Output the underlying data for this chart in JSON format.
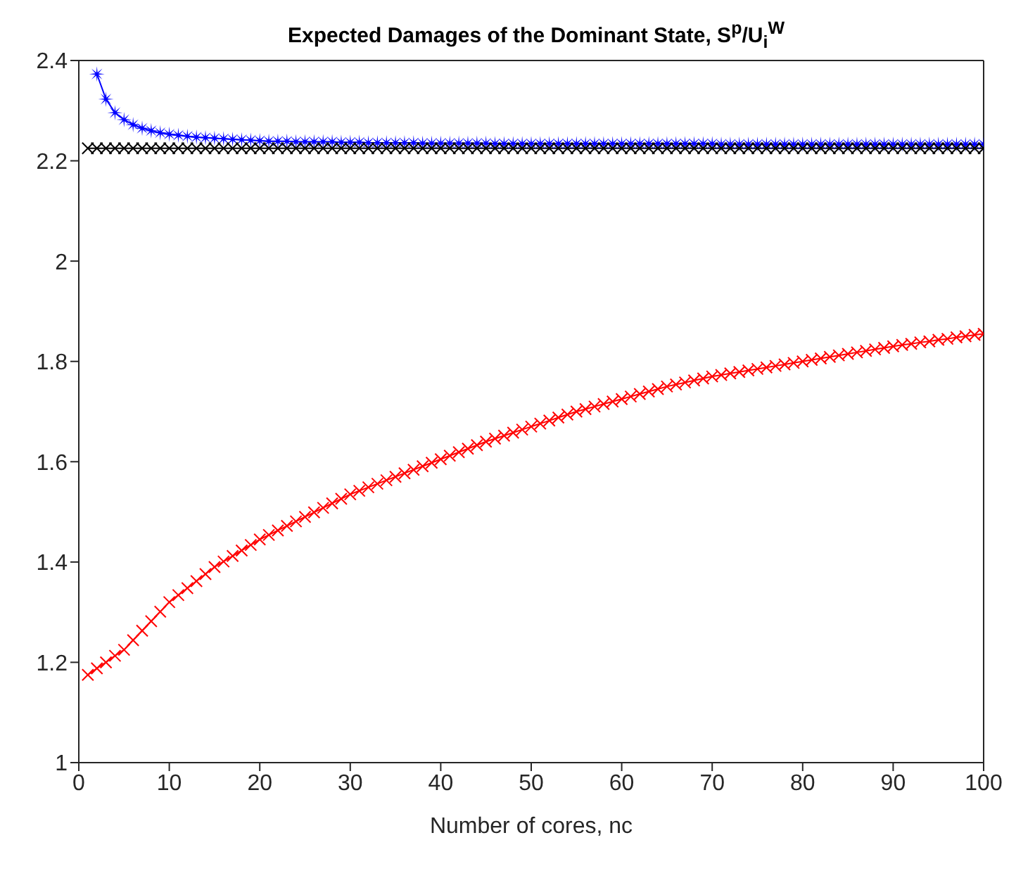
{
  "chart_data": {
    "type": "line",
    "title": "Expected Damages of the Dominant State, S$^{p}$/U$_{i}$$^{W}$",
    "xlabel": "Number of cores, nc",
    "x": [
      1,
      2,
      3,
      4,
      5,
      6,
      7,
      8,
      9,
      10,
      11,
      12,
      13,
      14,
      15,
      16,
      17,
      18,
      19,
      20,
      21,
      22,
      23,
      24,
      25,
      26,
      27,
      28,
      29,
      30,
      31,
      32,
      33,
      34,
      35,
      36,
      37,
      38,
      39,
      40,
      41,
      42,
      43,
      44,
      45,
      46,
      47,
      48,
      49,
      50,
      51,
      52,
      53,
      54,
      55,
      56,
      57,
      58,
      59,
      60,
      61,
      62,
      63,
      64,
      65,
      66,
      67,
      68,
      69,
      70,
      71,
      72,
      73,
      74,
      75,
      76,
      77,
      78,
      79,
      80,
      81,
      82,
      83,
      84,
      85,
      86,
      87,
      88,
      89,
      90,
      91,
      92,
      93,
      94,
      95,
      96,
      97,
      98,
      99,
      100
    ],
    "series": [
      {
        "color": "#0000ff",
        "marker": "star",
        "values": [
          null,
          2.373,
          2.323,
          2.296,
          2.282,
          2.272,
          2.265,
          2.26,
          2.256,
          2.253,
          2.251,
          2.249,
          2.247,
          2.246,
          2.245,
          2.244,
          2.243,
          2.242,
          2.241,
          2.24,
          2.239,
          2.239,
          2.239,
          2.238,
          2.238,
          2.238,
          2.238,
          2.238,
          2.237,
          2.237,
          2.237,
          2.236,
          2.236,
          2.236,
          2.236,
          2.236,
          2.236,
          2.235,
          2.235,
          2.235,
          2.235,
          2.235,
          2.235,
          2.235,
          2.235,
          2.234,
          2.234,
          2.234,
          2.234,
          2.234,
          2.234,
          2.234,
          2.234,
          2.234,
          2.234,
          2.234,
          2.234,
          2.234,
          2.234,
          2.234,
          2.234,
          2.234,
          2.234,
          2.234,
          2.234,
          2.234,
          2.234,
          2.234,
          2.234,
          2.234,
          2.233,
          2.233,
          2.233,
          2.233,
          2.233,
          2.233,
          2.233,
          2.233,
          2.233,
          2.233,
          2.233,
          2.233,
          2.233,
          2.233,
          2.233,
          2.233,
          2.233,
          2.233,
          2.233,
          2.233,
          2.233,
          2.233,
          2.233,
          2.233,
          2.233,
          2.233,
          2.233,
          2.233,
          2.233,
          2.233
        ]
      },
      {
        "color": "#000000",
        "marker": "cross",
        "values": [
          2.225,
          2.225,
          2.225,
          2.225,
          2.225,
          2.225,
          2.225,
          2.225,
          2.225,
          2.225,
          2.225,
          2.225,
          2.225,
          2.225,
          2.225,
          2.225,
          2.225,
          2.225,
          2.225,
          2.225,
          2.225,
          2.225,
          2.225,
          2.225,
          2.225,
          2.225,
          2.225,
          2.225,
          2.225,
          2.225,
          2.225,
          2.225,
          2.225,
          2.225,
          2.225,
          2.225,
          2.225,
          2.225,
          2.225,
          2.225,
          2.225,
          2.225,
          2.225,
          2.225,
          2.225,
          2.225,
          2.225,
          2.225,
          2.225,
          2.225,
          2.225,
          2.225,
          2.225,
          2.225,
          2.225,
          2.225,
          2.225,
          2.225,
          2.225,
          2.225,
          2.225,
          2.225,
          2.225,
          2.225,
          2.225,
          2.225,
          2.225,
          2.225,
          2.225,
          2.225,
          2.225,
          2.225,
          2.225,
          2.225,
          2.225,
          2.225,
          2.225,
          2.225,
          2.225,
          2.225,
          2.225,
          2.225,
          2.225,
          2.225,
          2.225,
          2.225,
          2.225,
          2.225,
          2.225,
          2.225,
          2.225,
          2.225,
          2.225,
          2.225,
          2.225,
          2.225,
          2.225,
          2.225,
          2.225,
          2.225
        ]
      },
      {
        "color": "#ff0000",
        "marker": "cross",
        "values": [
          1.175,
          1.188,
          1.2,
          1.213,
          1.225,
          1.244,
          1.263,
          1.282,
          1.301,
          1.32,
          1.334,
          1.348,
          1.362,
          1.376,
          1.39,
          1.401,
          1.412,
          1.423,
          1.434,
          1.445,
          1.454,
          1.463,
          1.472,
          1.481,
          1.49,
          1.499,
          1.508,
          1.517,
          1.526,
          1.535,
          1.542,
          1.549,
          1.556,
          1.563,
          1.57,
          1.577,
          1.584,
          1.591,
          1.598,
          1.605,
          1.612,
          1.619,
          1.626,
          1.633,
          1.64,
          1.646,
          1.652,
          1.658,
          1.664,
          1.67,
          1.676,
          1.682,
          1.688,
          1.694,
          1.7,
          1.705,
          1.71,
          1.715,
          1.72,
          1.725,
          1.73,
          1.735,
          1.74,
          1.745,
          1.75,
          1.754,
          1.758,
          1.762,
          1.766,
          1.77,
          1.773,
          1.776,
          1.779,
          1.782,
          1.785,
          1.788,
          1.791,
          1.794,
          1.797,
          1.8,
          1.803,
          1.806,
          1.809,
          1.812,
          1.815,
          1.818,
          1.821,
          1.824,
          1.827,
          1.83,
          1.833,
          1.835,
          1.838,
          1.84,
          1.843,
          1.845,
          1.848,
          1.85,
          1.853,
          1.855
        ]
      }
    ],
    "xlim": [
      0,
      100
    ],
    "xticks": [
      0,
      10,
      20,
      30,
      40,
      50,
      60,
      70,
      80,
      90,
      100
    ],
    "ylim": [
      1,
      2.4
    ],
    "yticks": [
      1,
      1.2,
      1.4,
      1.6,
      1.8,
      2,
      2.2,
      2.4
    ],
    "grid": false
  }
}
